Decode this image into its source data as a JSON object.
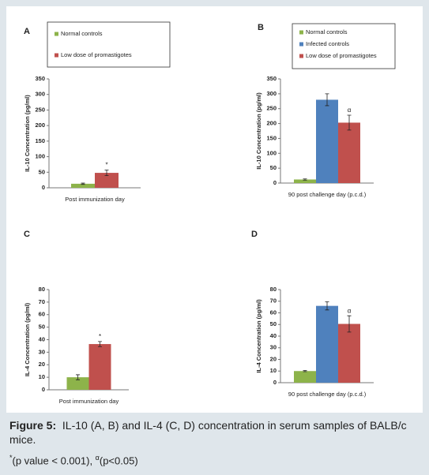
{
  "chart_data": [
    {
      "type": "bar",
      "panel": "A",
      "ylabel": "IL-10 Concentration (pg/ml)",
      "categories": [
        "Post immunization day"
      ],
      "series": [
        {
          "name": "Normal controls",
          "color": "#8db34a",
          "values": [
            13
          ],
          "errors": [
            2
          ]
        },
        {
          "name": "Low dose of promastigotes",
          "color": "#c0504d",
          "values": [
            48
          ],
          "errors": [
            9
          ],
          "annotation": "*"
        }
      ],
      "ylim": [
        0,
        350
      ],
      "yticks": [
        0,
        50,
        100,
        150,
        200,
        250,
        300,
        350
      ]
    },
    {
      "type": "bar",
      "panel": "B",
      "ylabel": "IL-10 Concentration (pg/ml)",
      "categories": [
        "90 post challenge day (p.c.d.)"
      ],
      "series": [
        {
          "name": "Normal controls",
          "color": "#8db34a",
          "values": [
            12
          ],
          "errors": [
            2
          ]
        },
        {
          "name": "Infected controls",
          "color": "#4f81bd",
          "values": [
            280
          ],
          "errors": [
            20
          ]
        },
        {
          "name": "Low dose of promastigotes",
          "color": "#c0504d",
          "values": [
            203
          ],
          "errors": [
            25
          ],
          "annotation": "α"
        }
      ],
      "ylim": [
        0,
        350
      ],
      "yticks": [
        0,
        50,
        100,
        150,
        200,
        250,
        300,
        350
      ]
    },
    {
      "type": "bar",
      "panel": "C",
      "ylabel": "IL-4 Concentration (pg/ml)",
      "categories": [
        "Post immunization day"
      ],
      "series": [
        {
          "name": "Normal controls",
          "color": "#8db34a",
          "values": [
            10
          ],
          "errors": [
            2
          ]
        },
        {
          "name": "Low dose of promastigotes",
          "color": "#c0504d",
          "values": [
            36.5
          ],
          "errors": [
            2
          ],
          "annotation": "*"
        }
      ],
      "ylim": [
        0,
        80
      ],
      "yticks": [
        0,
        10,
        20,
        30,
        40,
        50,
        60,
        70,
        80
      ]
    },
    {
      "type": "bar",
      "panel": "D",
      "ylabel": "IL-4 Concentration (pg/ml)",
      "categories": [
        "90 post challenge day (p.c.d.)"
      ],
      "series": [
        {
          "name": "Normal controls",
          "color": "#8db34a",
          "values": [
            10
          ],
          "errors": [
            0.5
          ]
        },
        {
          "name": "Infected controls",
          "color": "#4f81bd",
          "values": [
            66
          ],
          "errors": [
            3.5
          ]
        },
        {
          "name": "Low dose of promastigotes",
          "color": "#c0504d",
          "values": [
            50.5
          ],
          "errors": [
            7
          ],
          "annotation": "α"
        }
      ],
      "ylim": [
        0,
        80
      ],
      "yticks": [
        0,
        10,
        20,
        30,
        40,
        50,
        60,
        70,
        80
      ]
    }
  ],
  "caption": {
    "label": "Figure 5:",
    "text": "IL-10 (A, B) and IL-4 (C, D) concentration in serum samples of BALB/c mice.",
    "notes": [
      {
        "mark": "*",
        "text": "(p value < 0.001), "
      },
      {
        "mark": "α",
        "text": "(p<0.05)"
      }
    ]
  }
}
